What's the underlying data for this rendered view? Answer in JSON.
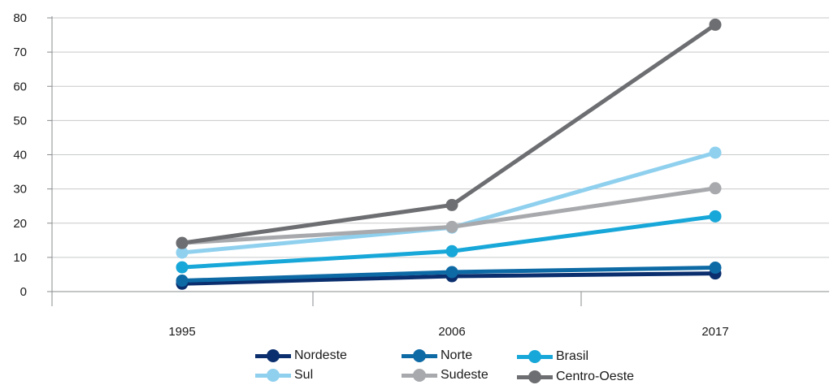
{
  "chart_data": {
    "type": "line",
    "x": [
      "1995",
      "2006",
      "2017"
    ],
    "ylim": [
      0,
      80
    ],
    "yticks": [
      "0",
      "10",
      "20",
      "30",
      "40",
      "50",
      "60",
      "70",
      "80"
    ],
    "grid": true,
    "legend_position": "bottom",
    "series": [
      {
        "name": "Nordeste",
        "color": "#0b2f6e",
        "values": [
          2.3,
          4.5,
          5.3
        ]
      },
      {
        "name": "Norte",
        "color": "#0d6aa5",
        "values": [
          3.2,
          5.7,
          7.0
        ]
      },
      {
        "name": "Brasil",
        "color": "#17a7d8",
        "values": [
          7.1,
          11.8,
          22.0
        ]
      },
      {
        "name": "Sul",
        "color": "#8fd0ee",
        "values": [
          11.4,
          18.7,
          40.6
        ]
      },
      {
        "name": "Sudeste",
        "color": "#a7a9ac",
        "values": [
          14.2,
          18.9,
          30.2
        ]
      },
      {
        "name": "Centro-Oeste",
        "color": "#6d6e71",
        "values": [
          14.2,
          25.3,
          78.0
        ]
      }
    ]
  }
}
